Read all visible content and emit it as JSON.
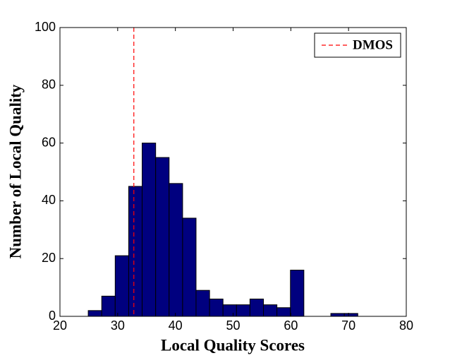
{
  "chart_data": {
    "type": "histogram",
    "xlabel": "Local Quality Scores",
    "ylabel": "Number of Local Quality",
    "bins": [
      24.9,
      27.24,
      29.57,
      31.91,
      34.24,
      36.58,
      38.91,
      41.25,
      43.58,
      45.92,
      48.25,
      50.59,
      52.92,
      55.26,
      57.59,
      59.93,
      62.26,
      64.6,
      66.93,
      69.27,
      71.6
    ],
    "counts": [
      2,
      7,
      21,
      45,
      60,
      55,
      46,
      34,
      9,
      6,
      4,
      4,
      6,
      4,
      3,
      16,
      0,
      0,
      1,
      1
    ],
    "color": "#00007f",
    "reference_line": {
      "name": "DMOS",
      "value": 32.8,
      "color": "#ff0000"
    },
    "legend": "upper right",
    "xlim": [
      20,
      80
    ],
    "xticks": [
      20,
      30,
      40,
      50,
      60,
      70,
      80
    ],
    "ylim": [
      0,
      100
    ],
    "yticks": [
      0,
      20,
      40,
      60,
      80,
      100
    ]
  }
}
